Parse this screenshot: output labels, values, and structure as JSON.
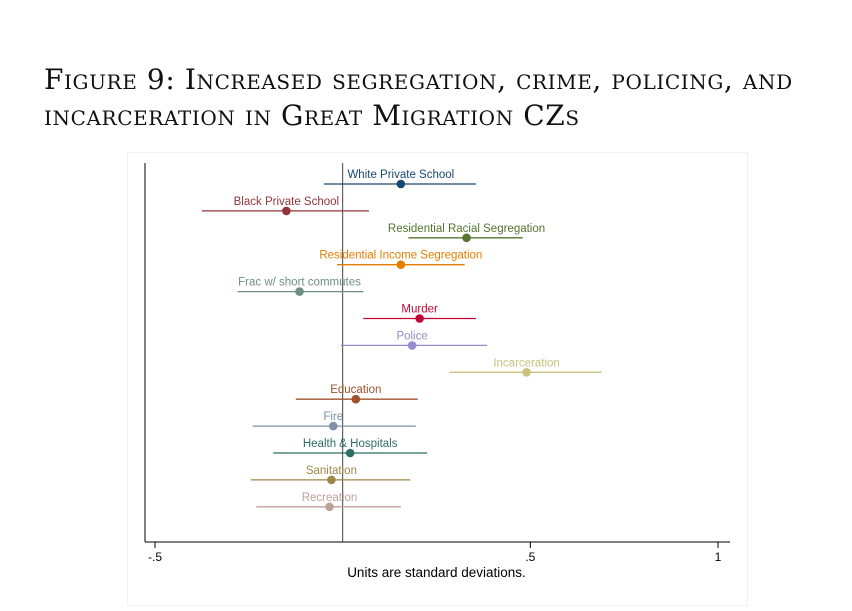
{
  "figure": {
    "title_line1": "Figure 9: Increased segregation, crime, policing, and",
    "title_line2": "incarceration in Great Migration CZs"
  },
  "chart_data": {
    "type": "scatter",
    "subtype": "coefficient plot with confidence intervals",
    "xlabel": "Units are standard deviations.",
    "ylabel": "",
    "xlim": [
      -0.5,
      1
    ],
    "xticks": [
      -0.5,
      0.5,
      1
    ],
    "xtick_labels": [
      "-.5",
      ".5",
      "1"
    ],
    "reference_line_x": 0,
    "grid": false,
    "series": [
      {
        "name": "White Private School",
        "estimate": 0.155,
        "ci_low": -0.05,
        "ci_high": 0.355,
        "color": "#1a476f"
      },
      {
        "name": "Black Private School",
        "estimate": -0.15,
        "ci_low": -0.375,
        "ci_high": 0.07,
        "color": "#90353b"
      },
      {
        "name": "Residential Racial Segregation",
        "estimate": 0.33,
        "ci_low": 0.175,
        "ci_high": 0.48,
        "color": "#55752f"
      },
      {
        "name": "Residential Income Segregation",
        "estimate": 0.155,
        "ci_low": -0.015,
        "ci_high": 0.325,
        "color": "#e37e00"
      },
      {
        "name": "Frac w/ short commutes",
        "estimate": -0.115,
        "ci_low": -0.28,
        "ci_high": 0.055,
        "color": "#6e8e84"
      },
      {
        "name": "Murder",
        "estimate": 0.205,
        "ci_low": 0.055,
        "ci_high": 0.355,
        "color": "#c10534"
      },
      {
        "name": "Police",
        "estimate": 0.185,
        "ci_low": -0.005,
        "ci_high": 0.385,
        "color": "#938dd2"
      },
      {
        "name": "Incarceration",
        "estimate": 0.49,
        "ci_low": 0.285,
        "ci_high": 0.69,
        "color": "#cac27e"
      },
      {
        "name": "Education",
        "estimate": 0.035,
        "ci_low": -0.125,
        "ci_high": 0.2,
        "color": "#a0522d"
      },
      {
        "name": "Fire",
        "estimate": -0.025,
        "ci_low": -0.24,
        "ci_high": 0.195,
        "color": "#7b92a8"
      },
      {
        "name": "Health & Hospitals",
        "estimate": 0.02,
        "ci_low": -0.185,
        "ci_high": 0.225,
        "color": "#2d6d66"
      },
      {
        "name": "Sanitation",
        "estimate": -0.03,
        "ci_low": -0.245,
        "ci_high": 0.18,
        "color": "#9c8847"
      },
      {
        "name": "Recreation",
        "estimate": -0.035,
        "ci_low": -0.23,
        "ci_high": 0.155,
        "color": "#bfa19c"
      }
    ]
  }
}
